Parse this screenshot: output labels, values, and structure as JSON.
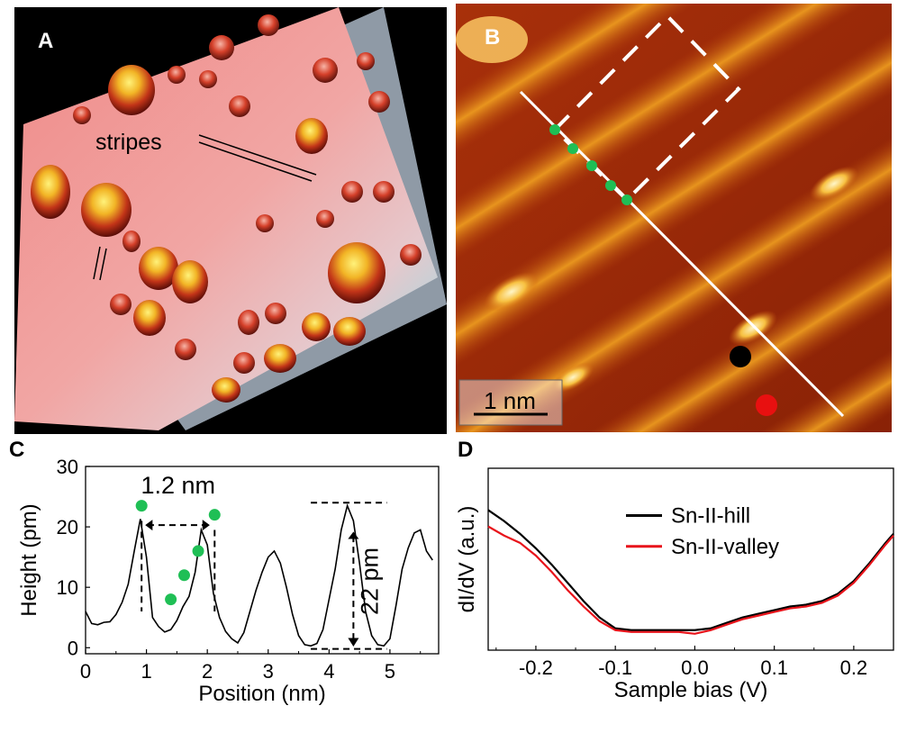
{
  "panels": {
    "a": {
      "label": "A",
      "annotation": "stripes"
    },
    "b": {
      "label": "B",
      "scalebar": "1 nm"
    },
    "c": {
      "label": "C"
    },
    "d": {
      "label": "D"
    }
  },
  "chart_data": [
    {
      "id": "C",
      "type": "line",
      "xlabel": "Position (nm)",
      "ylabel": "Height (pm)",
      "xlim": [
        0,
        5.8
      ],
      "ylim": [
        -1,
        30
      ],
      "xticks": [
        0,
        1,
        2,
        3,
        4,
        5
      ],
      "yticks": [
        0,
        10,
        20,
        30
      ],
      "series": [
        {
          "x": [
            0,
            0.1,
            0.2,
            0.3,
            0.4,
            0.5,
            0.6,
            0.7,
            0.8,
            0.9,
            1.0,
            1.1,
            1.2,
            1.3,
            1.4,
            1.5,
            1.6,
            1.7,
            1.8,
            1.9,
            2.0,
            2.1,
            2.2,
            2.3,
            2.4,
            2.5,
            2.6,
            2.7,
            2.8,
            2.9,
            3.0,
            3.1,
            3.2,
            3.3,
            3.4,
            3.5,
            3.6,
            3.7,
            3.8,
            3.9,
            4.0,
            4.1,
            4.2,
            4.3,
            4.4,
            4.5,
            4.6,
            4.7,
            4.8,
            4.9,
            5.0,
            5.1,
            5.2,
            5.3,
            5.4,
            5.5,
            5.6,
            5.7
          ],
          "values": [
            6,
            4,
            3.8,
            4.2,
            4.3,
            5.5,
            7.5,
            10.5,
            16,
            21.3,
            15,
            5,
            3.5,
            2.6,
            3,
            4.5,
            6.8,
            8.5,
            12.5,
            19.5,
            17,
            9,
            5,
            2.7,
            1.5,
            0.8,
            2.5,
            6,
            9.5,
            12.5,
            15,
            16,
            14,
            10,
            5.5,
            2,
            0.5,
            0.3,
            0.7,
            3,
            8,
            13,
            19.5,
            23.5,
            21,
            14,
            6,
            2,
            0.5,
            0.3,
            1.5,
            7,
            13,
            16.5,
            19,
            19.5,
            16,
            14.5
          ]
        }
      ],
      "markers": [
        {
          "x": 0.92,
          "y": 23.5
        },
        {
          "x": 1.4,
          "y": 8
        },
        {
          "x": 1.62,
          "y": 12
        },
        {
          "x": 1.85,
          "y": 16
        },
        {
          "x": 2.12,
          "y": 22
        }
      ],
      "annotations": [
        "1.2 nm",
        "22 pm"
      ]
    },
    {
      "id": "D",
      "type": "line",
      "xlabel": "Sample bias (V)",
      "ylabel": "dI/dV (a.u.)",
      "xlim": [
        -0.26,
        0.25
      ],
      "ylim": [
        0,
        1
      ],
      "xticks": [
        -0.2,
        -0.1,
        0.0,
        0.1,
        0.2
      ],
      "xticklabels": [
        "-0.2",
        "-0.1",
        "0.0",
        "0.1",
        "0.2"
      ],
      "legend_position": "top-right",
      "series": [
        {
          "name": "Sn-II-hill",
          "color": "#000000",
          "x": [
            -0.26,
            -0.24,
            -0.22,
            -0.2,
            -0.18,
            -0.16,
            -0.14,
            -0.12,
            -0.1,
            -0.08,
            -0.06,
            -0.04,
            -0.02,
            0.0,
            0.02,
            0.04,
            0.06,
            0.08,
            0.1,
            0.12,
            0.14,
            0.16,
            0.18,
            0.2,
            0.22,
            0.24,
            0.25
          ],
          "values": [
            0.77,
            0.71,
            0.64,
            0.56,
            0.47,
            0.37,
            0.27,
            0.18,
            0.12,
            0.11,
            0.11,
            0.11,
            0.11,
            0.11,
            0.12,
            0.15,
            0.18,
            0.2,
            0.22,
            0.24,
            0.25,
            0.27,
            0.31,
            0.38,
            0.48,
            0.59,
            0.64
          ]
        },
        {
          "name": "Sn-II-valley",
          "color": "#e8141b",
          "x": [
            -0.26,
            -0.24,
            -0.22,
            -0.2,
            -0.18,
            -0.16,
            -0.14,
            -0.12,
            -0.1,
            -0.08,
            -0.06,
            -0.04,
            -0.02,
            0.0,
            0.02,
            0.04,
            0.06,
            0.08,
            0.1,
            0.12,
            0.14,
            0.16,
            0.18,
            0.2,
            0.22,
            0.24,
            0.25
          ],
          "values": [
            0.68,
            0.63,
            0.59,
            0.52,
            0.43,
            0.33,
            0.24,
            0.16,
            0.11,
            0.1,
            0.1,
            0.1,
            0.1,
            0.09,
            0.11,
            0.14,
            0.17,
            0.19,
            0.21,
            0.23,
            0.24,
            0.26,
            0.3,
            0.37,
            0.47,
            0.58,
            0.63
          ]
        }
      ]
    }
  ],
  "colors": {
    "marker_green": "#1fbf55",
    "marker_black": "#000000",
    "marker_red": "#e81010"
  }
}
